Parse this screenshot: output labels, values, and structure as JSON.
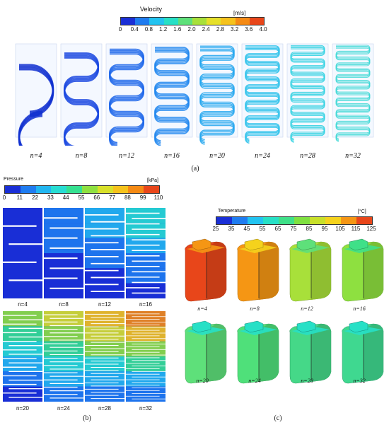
{
  "panel_a": {
    "label": "(a)",
    "title": "Velocity",
    "unit": "[m/s]",
    "ticks": [
      "0",
      "0.4",
      "0.8",
      "1.2",
      "1.6",
      "2.0",
      "2.4",
      "2.8",
      "3.2",
      "3.6",
      "4.0"
    ],
    "colors": [
      "#1a2fd6",
      "#1f7cf0",
      "#22c3f0",
      "#27e0c6",
      "#5ee07a",
      "#a8e03a",
      "#e6e02a",
      "#f5c21c",
      "#f58a14",
      "#e8461a"
    ],
    "items": [
      {
        "n": "n=4",
        "count": 4
      },
      {
        "n": "n=8",
        "count": 8
      },
      {
        "n": "n=12",
        "count": 12
      },
      {
        "n": "n=16",
        "count": 16
      },
      {
        "n": "n=20",
        "count": 20
      },
      {
        "n": "n=24",
        "count": 24
      },
      {
        "n": "n=28",
        "count": 28
      },
      {
        "n": "n=32",
        "count": 32
      }
    ]
  },
  "panel_b": {
    "label": "(b)",
    "title": "Pressure",
    "unit": "[kPa]",
    "ticks": [
      "0",
      "11",
      "22",
      "33",
      "44",
      "55",
      "66",
      "77",
      "88",
      "99",
      "110"
    ],
    "colors": [
      "#1a2fd6",
      "#1f7cf0",
      "#22b6f0",
      "#27dcd2",
      "#35e090",
      "#8ee040",
      "#d8e02a",
      "#f5c21c",
      "#f58a14",
      "#e8461a"
    ],
    "items": [
      {
        "n": "n=4",
        "count": 4
      },
      {
        "n": "n=8",
        "count": 8
      },
      {
        "n": "n=12",
        "count": 12
      },
      {
        "n": "n=16",
        "count": 16
      },
      {
        "n": "n=20",
        "count": 20
      },
      {
        "n": "n=24",
        "count": 24
      },
      {
        "n": "n=28",
        "count": 28
      },
      {
        "n": "n=32",
        "count": 32
      }
    ]
  },
  "panel_c": {
    "label": "(c)",
    "title": "Temperature",
    "unit": "[°C]",
    "ticks": [
      "25",
      "35",
      "45",
      "55",
      "65",
      "75",
      "85",
      "95",
      "105",
      "115",
      "125"
    ],
    "colors": [
      "#1a2fd6",
      "#1f7cf0",
      "#22c3f0",
      "#27e0c6",
      "#3fe088",
      "#7fe040",
      "#c8e02a",
      "#f5d21c",
      "#f59614",
      "#e8461a"
    ],
    "items": [
      {
        "n": "n=4",
        "body": "#e8461a",
        "top": "#f59614"
      },
      {
        "n": "n=8",
        "body": "#f59614",
        "top": "#f5d21c"
      },
      {
        "n": "n=12",
        "body": "#a8e03a",
        "top": "#5ee07a"
      },
      {
        "n": "n=16",
        "body": "#8ee040",
        "top": "#3fe088"
      },
      {
        "n": "n=20",
        "body": "#5ee07a",
        "top": "#27e0c6"
      },
      {
        "n": "n=24",
        "body": "#4fe07a",
        "top": "#27e0c6"
      },
      {
        "n": "n=28",
        "body": "#45d888",
        "top": "#27e0c6"
      },
      {
        "n": "n=32",
        "body": "#3fd890",
        "top": "#27e0c6"
      }
    ]
  }
}
